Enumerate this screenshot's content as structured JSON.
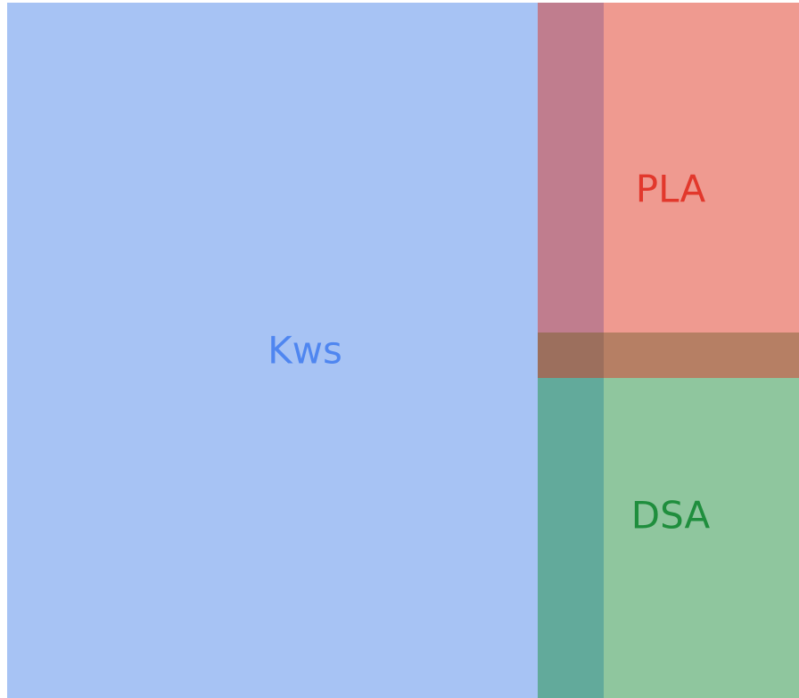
{
  "nodes": [
    {
      "label": "Kws"
    },
    {
      "label": "PLA"
    },
    {
      "label": "DSA"
    }
  ]
}
